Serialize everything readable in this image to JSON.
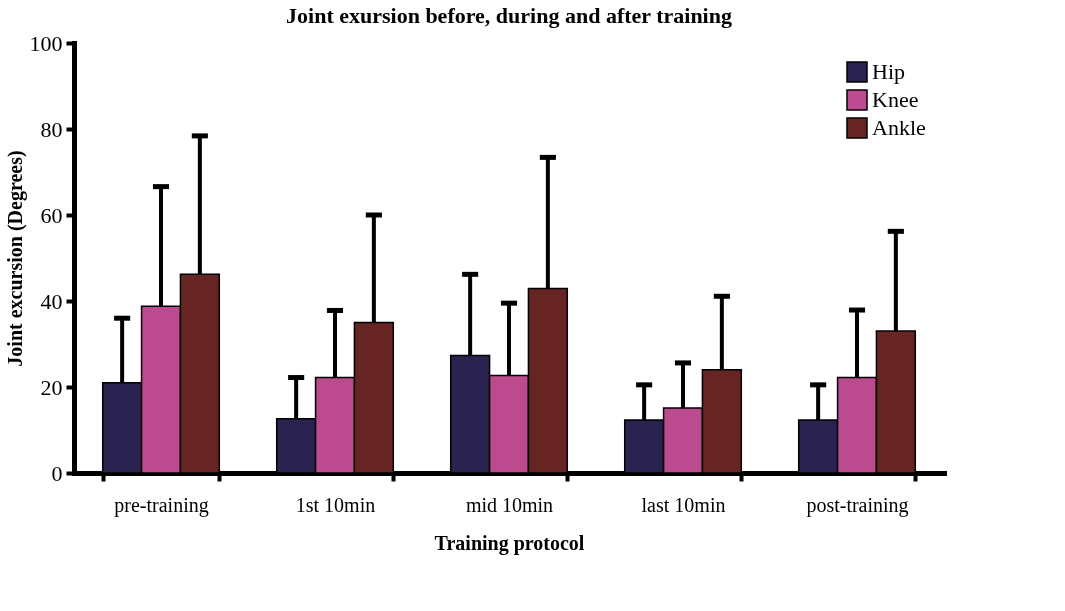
{
  "chart_data": {
    "type": "bar",
    "title": "Joint exursion before, during and after training",
    "xlabel": "Training protocol",
    "ylabel": "Joint excursion (Degrees)",
    "categories": [
      "pre-training",
      "1st 10min",
      "mid 10min",
      "last 10min",
      "post-training"
    ],
    "series": [
      {
        "name": "Hip",
        "color": "#2a224f",
        "values": [
          21,
          12.6,
          27.3,
          12.3,
          12.3
        ],
        "errors": [
          [
            21,
            36
          ],
          [
            12.6,
            22.2
          ],
          [
            27.3,
            46.2
          ],
          [
            12.3,
            20.5
          ],
          [
            12.3,
            20.5
          ]
        ]
      },
      {
        "name": "Knee",
        "color": "#bc4a8f",
        "values": [
          38.8,
          22.2,
          22.7,
          15.1,
          22.2
        ],
        "errors": [
          [
            38.8,
            66.6
          ],
          [
            22.2,
            37.8
          ],
          [
            22.7,
            39.5
          ],
          [
            15.1,
            25.6
          ],
          [
            22.2,
            37.9
          ]
        ]
      },
      {
        "name": "Ankle",
        "color": "#662422",
        "values": [
          46.2,
          35,
          42.9,
          24,
          33
        ],
        "errors": [
          [
            46.2,
            78.4
          ],
          [
            35,
            60
          ],
          [
            42.9,
            73.4
          ],
          [
            24,
            41.1
          ],
          [
            33,
            56.2
          ]
        ]
      }
    ],
    "ylim": [
      0,
      100
    ],
    "yticks": [
      0,
      20,
      40,
      60,
      80,
      100
    ],
    "grid": false,
    "legend": "top right"
  }
}
